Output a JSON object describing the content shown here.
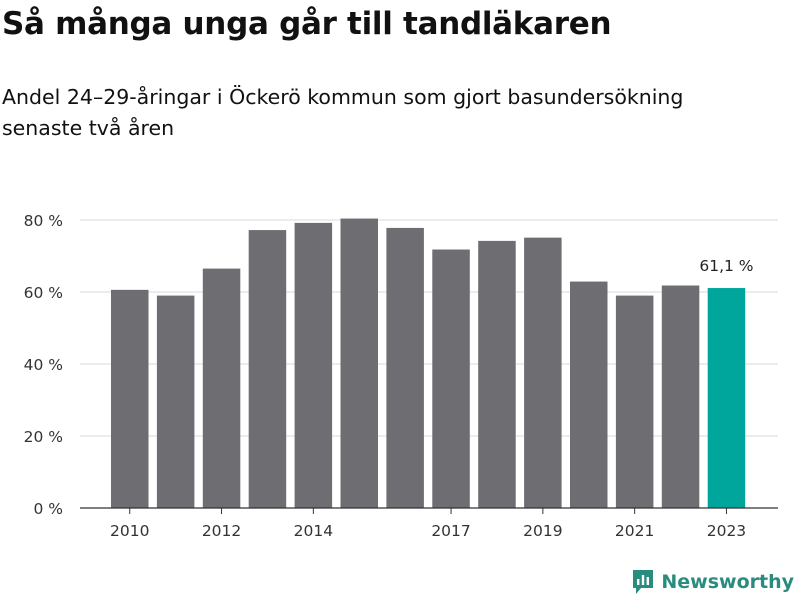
{
  "header": {
    "title": "Så många unga går till tandläkaren",
    "subtitle": "Andel 24–29-åringar i Öckerö kommun som gjort basundersökning senaste två åren"
  },
  "brand": {
    "name": "Newsworthy",
    "icon": "newsworthy-logo-icon",
    "color": "#2a8c7e"
  },
  "chart_data": {
    "type": "bar",
    "categories": [
      "2010",
      "2011",
      "2012",
      "2013",
      "2014",
      "2015",
      "2016",
      "2017",
      "2018",
      "2019",
      "2020",
      "2021",
      "2022",
      "2023"
    ],
    "x_tick_labels": [
      "2010",
      "",
      "2012",
      "",
      "2014",
      "",
      "",
      "2017",
      "",
      "2019",
      "",
      "2021",
      "",
      "2023"
    ],
    "values": [
      60.6,
      59.0,
      66.5,
      77.2,
      79.2,
      80.4,
      77.8,
      71.8,
      74.2,
      75.1,
      62.9,
      59.0,
      61.8,
      61.1
    ],
    "ylim": [
      0,
      80
    ],
    "y_ticks": [
      0,
      20,
      40,
      60,
      80
    ],
    "y_tick_labels": [
      "0 %",
      "20 %",
      "40 %",
      "60 %",
      "80 %"
    ],
    "xlabel": "",
    "ylabel": "",
    "grid": "horizontal",
    "annotation": {
      "index": 13,
      "text": "61,1 %"
    },
    "colors": {
      "bar": "#6d6d72",
      "highlight": "#00a69c",
      "grid": "#d8d8d8",
      "axis": "#333333"
    }
  }
}
